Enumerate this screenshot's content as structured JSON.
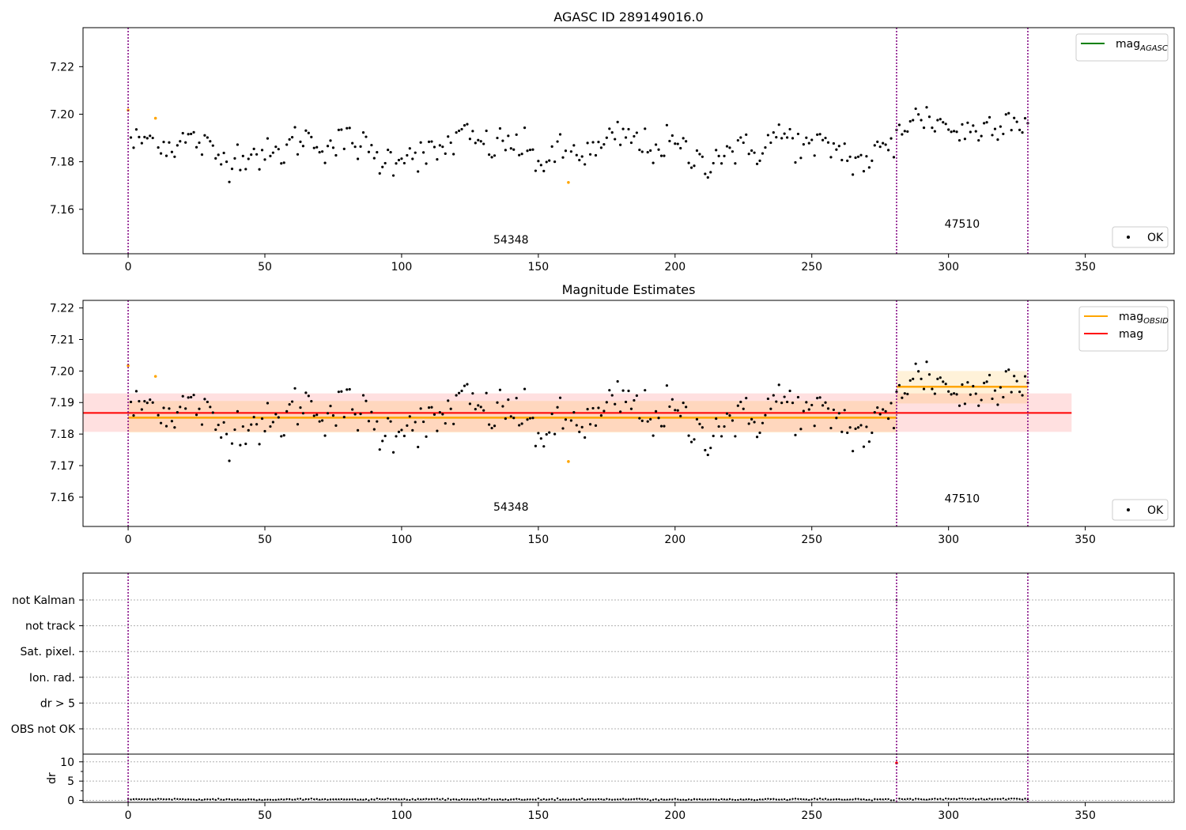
{
  "chart_data": [
    {
      "type": "scatter",
      "title": "AGASC ID 289149016.0",
      "xlim": [
        -16.5,
        382.5
      ],
      "ylim": [
        7.1413,
        7.2364
      ],
      "xticks": [
        0,
        50,
        100,
        150,
        200,
        250,
        300,
        350
      ],
      "yticks": [
        7.16,
        7.18,
        7.2,
        7.22
      ],
      "ytick_labels": [
        "7.16",
        "7.18",
        "7.20",
        "7.22"
      ],
      "obs_boundaries": [
        0,
        281,
        329
      ],
      "obs_labels": [
        {
          "text": "54348",
          "x": 140,
          "y": 7.1457
        },
        {
          "text": "47510",
          "x": 305,
          "y": 7.1523
        }
      ],
      "legend_upper": [
        {
          "label": "mag",
          "subscript": "AGASC",
          "color": "#008000",
          "kind": "line"
        }
      ],
      "legend_lower": [
        {
          "label": "OK",
          "color": "#000000",
          "kind": "point"
        }
      ],
      "series_ok_name": "OK",
      "flagged_points": [
        [
          0,
          7.2017
        ],
        [
          10,
          7.1983
        ],
        [
          161,
          7.1713
        ]
      ],
      "grid": false
    },
    {
      "type": "scatter",
      "title": "Magnitude Estimates",
      "xlim": [
        -16.5,
        382.5
      ],
      "ylim": [
        7.1507,
        7.2224
      ],
      "xticks": [
        0,
        50,
        100,
        150,
        200,
        250,
        300,
        350
      ],
      "yticks": [
        7.16,
        7.17,
        7.18,
        7.19,
        7.2,
        7.21,
        7.22
      ],
      "ytick_labels": [
        "7.16",
        "7.17",
        "7.18",
        "7.19",
        "7.20",
        "7.21",
        "7.22"
      ],
      "obs_boundaries": [
        0,
        281,
        329
      ],
      "obs_labels": [
        {
          "text": "54348",
          "x": 140,
          "y": 7.1557
        },
        {
          "text": "47510",
          "x": 305,
          "y": 7.1583
        }
      ],
      "legend_upper": [
        {
          "label": "mag",
          "subscript": "OBSID",
          "color": "#ffa500",
          "kind": "line"
        },
        {
          "label": "mag",
          "subscript": "",
          "color": "#ff0000",
          "kind": "line"
        }
      ],
      "legend_lower": [
        {
          "label": "OK",
          "color": "#000000",
          "kind": "point"
        }
      ],
      "mag": {
        "value": 7.1867,
        "band_outer": [
          7.1807,
          7.1929
        ],
        "x_range": [
          -16.5,
          345
        ]
      },
      "mag_obsid": [
        {
          "x_range": [
            0,
            281
          ],
          "value": 7.1852,
          "band": [
            7.1805,
            7.1905
          ]
        },
        {
          "x_range": [
            281,
            329
          ],
          "value": 7.195,
          "band": [
            7.1897,
            7.2
          ]
        }
      ],
      "flagged_points": [
        [
          0,
          7.2017
        ],
        [
          10,
          7.1983
        ],
        [
          161,
          7.1713
        ]
      ],
      "grid": false
    },
    {
      "type": "scatter",
      "title": "",
      "xlim": [
        -16.5,
        382.5
      ],
      "xticks": [
        0,
        50,
        100,
        150,
        200,
        250,
        300,
        350
      ],
      "flag_categories": [
        "not Kalman",
        "not track",
        "Sat. pixel.",
        "Ion. rad.",
        "dr > 5",
        "OBS not OK"
      ],
      "flag_points": [
        {
          "category": "not Kalman",
          "x": 281
        }
      ],
      "dr": {
        "ylabel": "dr",
        "ylim": [
          -0.5,
          12
        ],
        "yticks": [
          0,
          5,
          10
        ],
        "outliers": [
          {
            "x": 281,
            "y": 9.7,
            "color": "#ff0000"
          }
        ],
        "typical": 0.25
      },
      "obs_boundaries": [
        0,
        281,
        329
      ],
      "grid": true
    }
  ]
}
